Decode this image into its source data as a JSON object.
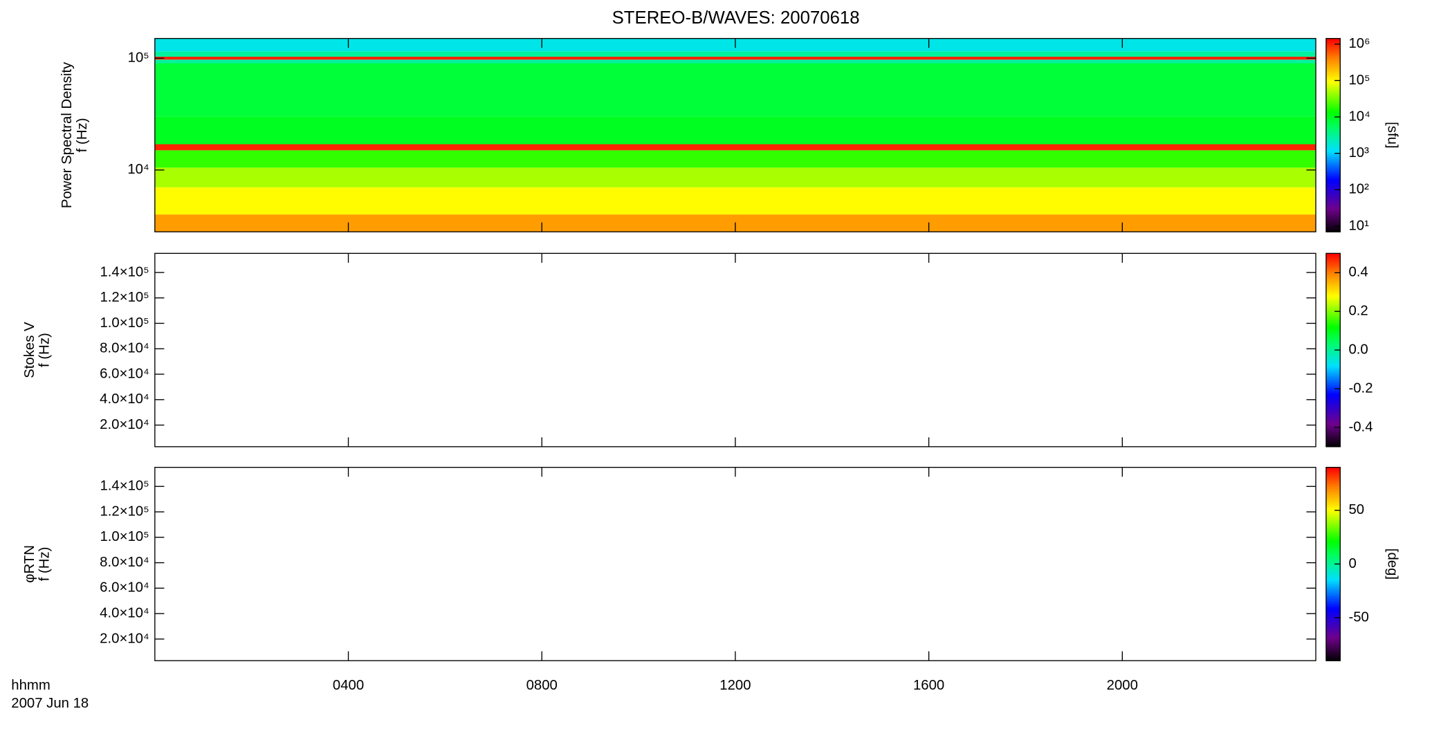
{
  "chart_data": [
    {
      "type": "heatmap",
      "title": "STEREO-B/WAVES: 20070618",
      "ylabel": [
        "Power Spectral Density",
        "f (Hz)"
      ],
      "ylog": true,
      "ylim": [
        2800,
        150000
      ],
      "yticks": [
        {
          "value": 10000,
          "label": "10⁴"
        },
        {
          "value": 100000,
          "label": "10⁵"
        }
      ],
      "y_edges": [
        2800,
        4000,
        7000,
        10500,
        15000,
        17000,
        30000,
        90000,
        97000,
        103000,
        115000,
        150000
      ],
      "values": [
        300000,
        100000,
        50000,
        20000,
        1000000,
        10000,
        8000,
        3000,
        1000000,
        3000,
        1500
      ],
      "zlog": true,
      "zlim": [
        7,
        1430000
      ],
      "zticks": [
        {
          "value": 10,
          "label": "10¹"
        },
        {
          "value": 100,
          "label": "10²"
        },
        {
          "value": 1000,
          "label": "10³"
        },
        {
          "value": 10000,
          "label": "10⁴"
        },
        {
          "value": 100000,
          "label": "10⁵"
        },
        {
          "value": 1000000,
          "label": "10⁶"
        }
      ],
      "zlabel": "[sfu]"
    },
    {
      "type": "heatmap",
      "ylabel": [
        "Stokes V",
        "f (Hz)"
      ],
      "ylog": false,
      "ylim": [
        3000,
        155000
      ],
      "yticks": [
        {
          "value": 20000,
          "label": "2.0×10⁴"
        },
        {
          "value": 40000,
          "label": "4.0×10⁴"
        },
        {
          "value": 60000,
          "label": "6.0×10⁴"
        },
        {
          "value": 80000,
          "label": "8.0×10⁴"
        },
        {
          "value": 100000,
          "label": "1.0×10⁵"
        },
        {
          "value": 120000,
          "label": "1.2×10⁵"
        },
        {
          "value": 140000,
          "label": "1.4×10⁵"
        }
      ],
      "zlog": false,
      "zlim": [
        -0.5,
        0.5
      ],
      "zticks": [
        -0.4,
        -0.2,
        {
          "value": 0,
          "label": "0.0"
        },
        0.2,
        0.4
      ]
    },
    {
      "type": "heatmap",
      "ylabel": [
        "φRTN",
        "f (Hz)"
      ],
      "ylog": false,
      "ylim": [
        3000,
        155000
      ],
      "yticks": [
        {
          "value": 20000,
          "label": "2.0×10⁴"
        },
        {
          "value": 40000,
          "label": "4.0×10⁴"
        },
        {
          "value": 60000,
          "label": "6.0×10⁴"
        },
        {
          "value": 80000,
          "label": "8.0×10⁴"
        },
        {
          "value": 100000,
          "label": "1.0×10⁵"
        },
        {
          "value": 120000,
          "label": "1.2×10⁵"
        },
        {
          "value": 140000,
          "label": "1.4×10⁵"
        }
      ],
      "zlog": false,
      "zlim": [
        -90,
        90
      ],
      "zticks": [
        -50,
        0,
        50
      ],
      "zlabel": "[deg]",
      "xlabel": "hhmm",
      "date": "2007 Jun 18",
      "xlim": [
        0,
        24
      ],
      "xticks": [
        {
          "value": 4,
          "label": "0400"
        },
        {
          "value": 8,
          "label": "0800"
        },
        {
          "value": 12,
          "label": "1200"
        },
        {
          "value": 16,
          "label": "1600"
        },
        {
          "value": 20,
          "label": "2000"
        }
      ]
    }
  ]
}
